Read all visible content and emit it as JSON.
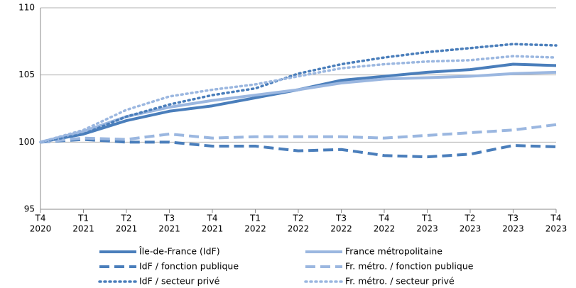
{
  "chart_data": {
    "type": "line",
    "categories": [
      [
        "T4",
        "2020"
      ],
      [
        "T1",
        "2021"
      ],
      [
        "T2",
        "2021"
      ],
      [
        "T3",
        "2021"
      ],
      [
        "T4",
        "2021"
      ],
      [
        "T1",
        "2022"
      ],
      [
        "T2",
        "2022"
      ],
      [
        "T3",
        "2022"
      ],
      [
        "T4",
        "2022"
      ],
      [
        "T1",
        "2023"
      ],
      [
        "T2",
        "2023"
      ],
      [
        "T3",
        "2023"
      ],
      [
        "T4",
        "2023"
      ]
    ],
    "ylim": [
      95,
      110
    ],
    "yticks": [
      95,
      100,
      105,
      110
    ],
    "grid": true,
    "series": [
      {
        "name": "Île-de-France (IdF)",
        "color": "#4a7ebb",
        "dash": "solid",
        "values": [
          100,
          100.6,
          101.6,
          102.3,
          102.7,
          103.3,
          103.9,
          104.6,
          104.9,
          105.2,
          105.4,
          105.8,
          105.7
        ]
      },
      {
        "name": "France métropolitaine",
        "color": "#9bb7e0",
        "dash": "solid",
        "values": [
          100,
          100.8,
          101.9,
          102.6,
          103.1,
          103.5,
          103.9,
          104.4,
          104.7,
          104.8,
          104.9,
          105.1,
          105.2
        ]
      },
      {
        "name": "IdF / fonction publique",
        "color": "#4a7ebb",
        "dash": "dashed",
        "values": [
          100,
          100.2,
          100.0,
          100.0,
          99.7,
          99.7,
          99.35,
          99.45,
          99.0,
          98.9,
          99.1,
          99.75,
          99.65
        ]
      },
      {
        "name": "Fr. métro. / fonction publique",
        "color": "#9bb7e0",
        "dash": "dashed",
        "values": [
          100,
          100.3,
          100.2,
          100.6,
          100.3,
          100.4,
          100.4,
          100.4,
          100.3,
          100.5,
          100.7,
          100.9,
          101.3
        ]
      },
      {
        "name": "IdF / secteur privé",
        "color": "#4a7ebb",
        "dash": "dotted",
        "values": [
          100,
          100.6,
          101.9,
          102.8,
          103.5,
          104.0,
          105.1,
          105.8,
          106.3,
          106.7,
          107.0,
          107.3,
          107.2
        ]
      },
      {
        "name": "Fr. métro. / secteur privé",
        "color": "#9bb7e0",
        "dash": "dotted",
        "values": [
          100,
          100.9,
          102.4,
          103.4,
          103.9,
          104.3,
          104.9,
          105.5,
          105.8,
          106.0,
          106.1,
          106.4,
          106.3
        ]
      }
    ]
  }
}
